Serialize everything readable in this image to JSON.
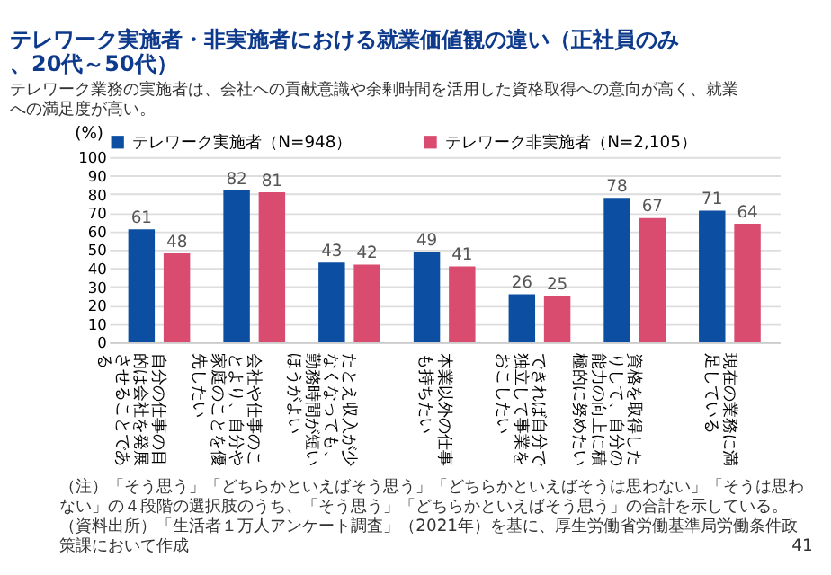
{
  "chart_data": {
    "type": "bar",
    "title": "テレワーク実施者・非実施者における就業価値観の違い（正社員のみ、20代～50代）",
    "subtitle": "テレワーク業務の実施者は、会社への貢献意識や余剰時間を活用した資格取得への意向が高く、就業への満足度が高い。",
    "ylabel": "(%)",
    "categories": [
      "自分の仕事の目的は会社を発展させることである",
      "会社や仕事のことより、自分や家庭のことを優先したい",
      "たとえ収入が少なくなっても、勤務時間が短いほうがよい",
      "本業以外の仕事も持ちたい",
      "できれば自分で独立して事業をおこしたい",
      "資格を取得したりして、自分の能力の向上に積極的に努めたい",
      "現在の業務に満足している"
    ],
    "series": [
      {
        "name": "テレワーク実施者（N=948）",
        "color": "#0b4ea2",
        "values": [
          61,
          82,
          43,
          49,
          26,
          78,
          71
        ]
      },
      {
        "name": "テレワーク非実施者（N=2,105）",
        "color": "#d94c70",
        "values": [
          48,
          81,
          42,
          41,
          25,
          67,
          64
        ]
      }
    ],
    "ylim": [
      0,
      100
    ],
    "yticks": [
      0,
      10,
      20,
      30,
      40,
      50,
      60,
      70,
      80,
      90,
      100
    ],
    "grid": "y",
    "legend": "top",
    "data_labels": true,
    "annotations": [
      "（注）「そう思う」「どちらかといえばそう思う」「どちらかといえばそうは思わない」「そうは思わない」の４段階の選択肢のうち、「そう思う」「どちらかといえばそう思う」の合計を示している。",
      "（資料出所）「生活者１万人アンケート調査」（2021年）を基に、厚生労働省労働基準局労働条件政策課において作成",
      "41"
    ]
  }
}
